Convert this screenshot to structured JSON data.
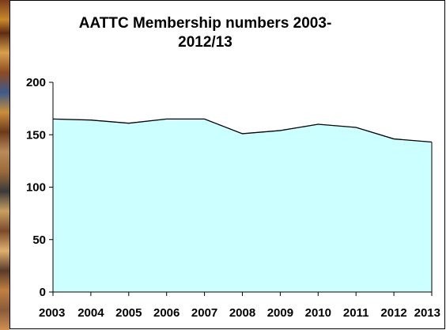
{
  "chart_data": {
    "type": "area",
    "title_lines": [
      "AATTC Membership numbers 2003-",
      "2012/13"
    ],
    "categories": [
      "2003",
      "2004",
      "2005",
      "2006",
      "2007",
      "2008",
      "2009",
      "2010",
      "2011",
      "2012",
      "2013"
    ],
    "series": [
      {
        "values": [
          165,
          164,
          161,
          165,
          165,
          151,
          154,
          160,
          157,
          146,
          143
        ]
      }
    ],
    "ylim": [
      0,
      200
    ],
    "yticks": [
      "0",
      "50",
      "100",
      "150",
      "200"
    ],
    "grid": false,
    "legend": "none",
    "colors": {
      "area_fill": "#ccffff",
      "line": "#000000",
      "axis": "#000000"
    }
  }
}
